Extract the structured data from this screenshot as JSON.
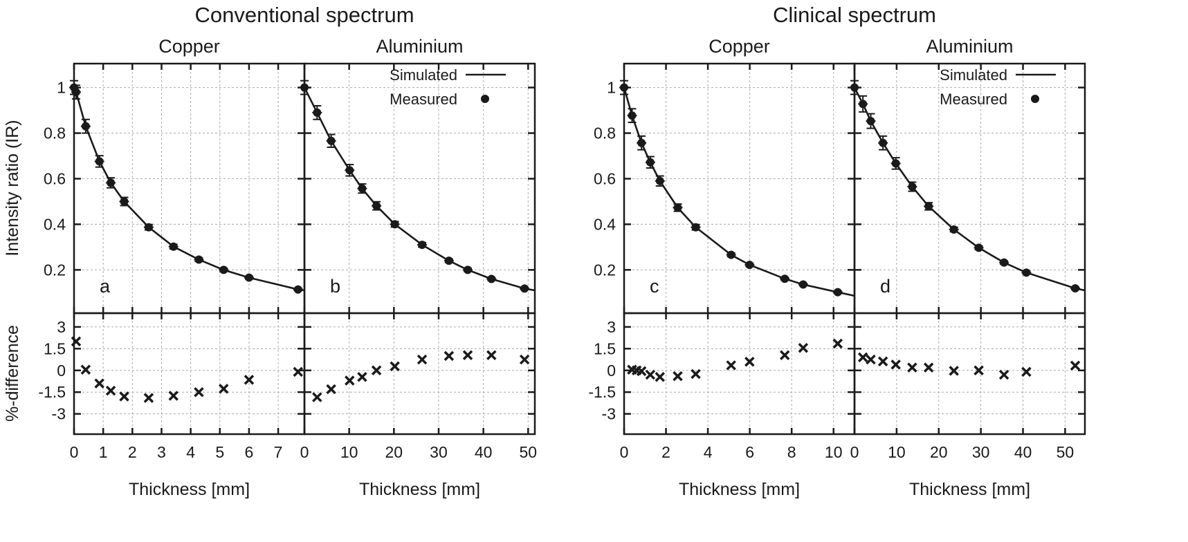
{
  "chart_data": {
    "type": "scatter",
    "titles": [
      "Conventional spectrum",
      "Clinical spectrum"
    ],
    "ylabel_top": "Intensity ratio (IR)",
    "ylabel_bottom": "%-difference",
    "xlabel": "Thickness [mm]",
    "legend": {
      "simulated": "Simulated",
      "measured": "Measured",
      "placement": "top-right"
    },
    "grid": true,
    "top_ylim": [
      0.01,
      1.105
    ],
    "top_yticks": [
      "0.2",
      "0.4",
      "0.6",
      "0.8",
      "1"
    ],
    "top_ytick_values": [
      0.2,
      0.4,
      0.6,
      0.8,
      1.0
    ],
    "bottom_ylim": [
      -4.4,
      3.95
    ],
    "bottom_yticks": [
      "3",
      "1.5",
      "0",
      "-1.5",
      "-3"
    ],
    "bottom_ytick_values": [
      3,
      1.5,
      0,
      -1.5,
      -3
    ],
    "panels": [
      {
        "group": "Conventional spectrum",
        "material": "Copper",
        "letter": "a",
        "xlim": [
          0,
          7.9
        ],
        "xticks": [
          "0",
          "1",
          "2",
          "3",
          "4",
          "5",
          "6",
          "7"
        ],
        "xtick_values": [
          0,
          1,
          2,
          3,
          4,
          5,
          6,
          7
        ],
        "measured": {
          "x": [
            0,
            0.07,
            0.4,
            0.87,
            1.26,
            1.72,
            2.56,
            3.41,
            4.28,
            5.13,
            6.0,
            7.68
          ],
          "y": [
            1.0,
            0.98,
            0.83,
            0.676,
            0.582,
            0.5,
            0.387,
            0.302,
            0.245,
            0.2,
            0.166,
            0.114
          ],
          "err": [
            0.03,
            0.03,
            0.03,
            0.025,
            0.022,
            0.018,
            0.012,
            0.01,
            0.008,
            0.007,
            0.006,
            0.005
          ]
        },
        "simulated": {
          "x": [
            0,
            0.07,
            0.4,
            0.87,
            1.26,
            1.72,
            2.56,
            3.41,
            4.28,
            5.13,
            6.0,
            7.68,
            7.9
          ],
          "y": [
            1.0,
            0.98,
            0.83,
            0.676,
            0.582,
            0.5,
            0.387,
            0.302,
            0.245,
            0.2,
            0.166,
            0.114,
            0.11
          ]
        },
        "difference": {
          "x": [
            0.07,
            0.4,
            0.87,
            1.26,
            1.72,
            2.56,
            3.41,
            4.28,
            5.13,
            6.0,
            7.68
          ],
          "y": [
            2.0,
            0.05,
            -0.9,
            -1.4,
            -1.8,
            -1.9,
            -1.75,
            -1.5,
            -1.27,
            -0.65,
            -0.1
          ]
        }
      },
      {
        "group": "Conventional spectrum",
        "material": "Aluminium",
        "letter": "b",
        "xlim": [
          0,
          51.5
        ],
        "xticks": [
          "0",
          "10",
          "20",
          "30",
          "40",
          "50"
        ],
        "xtick_values": [
          0,
          10,
          20,
          30,
          40,
          50
        ],
        "measured": {
          "x": [
            0,
            2.83,
            5.97,
            10.1,
            12.9,
            16.1,
            20.2,
            26.3,
            32.3,
            36.5,
            41.8,
            49.2
          ],
          "y": [
            1.0,
            0.89,
            0.766,
            0.637,
            0.557,
            0.481,
            0.4,
            0.31,
            0.24,
            0.2,
            0.16,
            0.118
          ],
          "err": [
            0.03,
            0.03,
            0.028,
            0.025,
            0.02,
            0.018,
            0.012,
            0.01,
            0.008,
            0.007,
            0.006,
            0.005
          ]
        },
        "simulated": {
          "x": [
            0,
            2.83,
            5.97,
            10.1,
            12.9,
            16.1,
            20.2,
            26.3,
            32.3,
            36.5,
            41.8,
            49.2,
            51.5
          ],
          "y": [
            1.0,
            0.89,
            0.766,
            0.637,
            0.557,
            0.481,
            0.4,
            0.31,
            0.24,
            0.2,
            0.16,
            0.118,
            0.11
          ]
        },
        "difference": {
          "x": [
            2.83,
            5.97,
            10.1,
            12.9,
            16.1,
            20.2,
            26.3,
            32.3,
            36.5,
            41.8,
            49.2
          ],
          "y": [
            -1.85,
            -1.3,
            -0.7,
            -0.45,
            0.0,
            0.28,
            0.75,
            1.0,
            1.05,
            1.05,
            0.75
          ]
        }
      },
      {
        "group": "Clinical spectrum",
        "material": "Copper",
        "letter": "c",
        "xlim": [
          0,
          11.0
        ],
        "xticks": [
          "0",
          "2",
          "4",
          "6",
          "8",
          "10"
        ],
        "xtick_values": [
          0,
          2,
          4,
          6,
          8,
          10
        ],
        "measured": {
          "x": [
            0,
            0.38,
            0.83,
            1.25,
            1.71,
            2.56,
            3.42,
            5.11,
            5.99,
            7.67,
            8.55,
            10.2
          ],
          "y": [
            1.0,
            0.877,
            0.757,
            0.672,
            0.59,
            0.473,
            0.387,
            0.266,
            0.222,
            0.161,
            0.136,
            0.102
          ],
          "err": [
            0.03,
            0.03,
            0.03,
            0.025,
            0.022,
            0.016,
            0.012,
            0.008,
            0.007,
            0.006,
            0.005,
            0.005
          ]
        },
        "simulated": {
          "x": [
            0,
            0.38,
            0.83,
            1.25,
            1.71,
            2.56,
            3.42,
            5.11,
            5.99,
            7.67,
            8.55,
            10.2,
            11.0
          ],
          "y": [
            1.0,
            0.877,
            0.757,
            0.672,
            0.59,
            0.473,
            0.387,
            0.266,
            0.222,
            0.161,
            0.136,
            0.102,
            0.086
          ]
        },
        "difference": {
          "x": [
            0.38,
            0.6,
            0.83,
            1.25,
            1.71,
            2.56,
            3.42,
            5.11,
            5.99,
            7.67,
            8.55,
            10.2
          ],
          "y": [
            0.05,
            0.0,
            -0.05,
            -0.3,
            -0.45,
            -0.4,
            -0.25,
            0.35,
            0.6,
            1.05,
            1.55,
            1.85
          ]
        }
      },
      {
        "group": "Clinical spectrum",
        "material": "Aluminium",
        "letter": "d",
        "xlim": [
          0,
          54.7
        ],
        "xticks": [
          "0",
          "10",
          "20",
          "30",
          "40",
          "50"
        ],
        "xtick_values": [
          0,
          10,
          20,
          30,
          40,
          50
        ],
        "measured": {
          "x": [
            0,
            2.0,
            3.86,
            6.76,
            9.8,
            13.7,
            17.6,
            23.6,
            29.5,
            35.5,
            40.8,
            52.4
          ],
          "y": [
            1.0,
            0.928,
            0.853,
            0.757,
            0.667,
            0.565,
            0.479,
            0.377,
            0.297,
            0.232,
            0.188,
            0.119
          ],
          "err": [
            0.03,
            0.035,
            0.032,
            0.03,
            0.025,
            0.02,
            0.016,
            0.01,
            0.008,
            0.007,
            0.006,
            0.005
          ]
        },
        "simulated": {
          "x": [
            0,
            2.0,
            3.86,
            6.76,
            9.8,
            13.7,
            17.6,
            23.6,
            29.5,
            35.5,
            40.8,
            52.4,
            54.7
          ],
          "y": [
            1.0,
            0.928,
            0.853,
            0.757,
            0.667,
            0.565,
            0.479,
            0.377,
            0.297,
            0.232,
            0.188,
            0.119,
            0.11
          ]
        },
        "difference": {
          "x": [
            2.0,
            3.86,
            6.76,
            9.8,
            13.7,
            17.6,
            23.6,
            29.5,
            35.5,
            40.8,
            52.4
          ],
          "y": [
            0.9,
            0.75,
            0.62,
            0.4,
            0.2,
            0.2,
            -0.03,
            0.0,
            -0.3,
            -0.1,
            0.33
          ]
        }
      }
    ]
  }
}
